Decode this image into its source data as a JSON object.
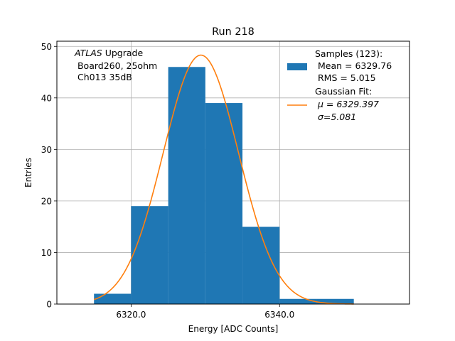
{
  "chart_data": {
    "type": "bar",
    "title": "Run 218",
    "xlabel": "Energy [ADC Counts]",
    "ylabel": "Entries",
    "xlim": [
      6310,
      6357.5
    ],
    "ylim": [
      0,
      51
    ],
    "grid": true,
    "x_ticks": [
      6320,
      6340
    ],
    "x_tick_labels": [
      "6320.0",
      "6340.0"
    ],
    "y_ticks": [
      0,
      10,
      20,
      30,
      40,
      50
    ],
    "y_tick_labels": [
      "0",
      "10",
      "20",
      "30",
      "40",
      "50"
    ],
    "annotation": {
      "italic": "ATLAS",
      "line1_rest": " Upgrade",
      "line2": " Board260, 25ohm",
      "line3": " Ch013 35dB"
    },
    "legend": {
      "position": "top-right",
      "samples_line1": "Samples (123):",
      "samples_line2": " Mean = 6329.76",
      "samples_line3": " RMS = 5.015",
      "fit_line1": "Gaussian Fit:",
      "fit_line2": " μ = 6329.397",
      "fit_line3": " σ=5.081"
    },
    "histogram": {
      "bins": [
        {
          "x0": 6315,
          "x1": 6320,
          "count": 2
        },
        {
          "x0": 6320,
          "x1": 6325,
          "count": 19
        },
        {
          "x0": 6325,
          "x1": 6330,
          "count": 46
        },
        {
          "x0": 6330,
          "x1": 6335,
          "count": 39
        },
        {
          "x0": 6335,
          "x1": 6340,
          "count": 15
        },
        {
          "x0": 6340,
          "x1": 6345,
          "count": 1
        },
        {
          "x0": 6345,
          "x1": 6350,
          "count": 1
        }
      ],
      "color": "#1f77b4"
    },
    "fit": {
      "mu": 6329.397,
      "sigma": 5.081,
      "amplitude": 48.3,
      "x_range": [
        6315,
        6350
      ],
      "color": "#ff7f0e"
    }
  }
}
